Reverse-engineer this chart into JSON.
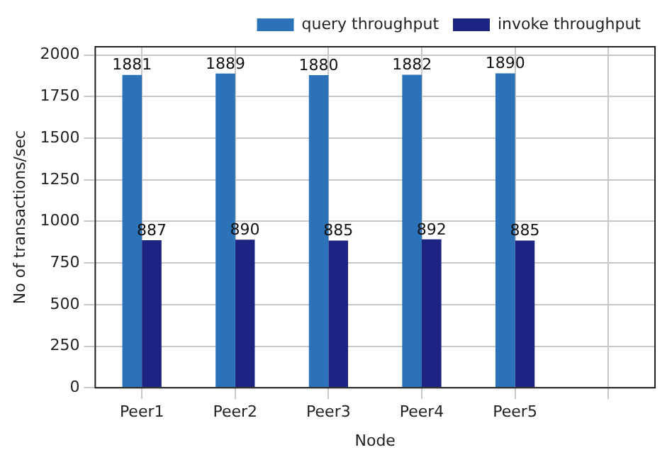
{
  "chart_data": {
    "type": "bar",
    "xlabel": "Node",
    "ylabel": "No of transactions/sec",
    "categories": [
      "Peer1",
      "Peer2",
      "Peer3",
      "Peer4",
      "Peer5",
      null
    ],
    "series": [
      {
        "name": "query throughput",
        "color": "#2c72b8",
        "values": [
          1881,
          1889,
          1880,
          1882,
          1890,
          null
        ]
      },
      {
        "name": "invoke throughput",
        "color": "#1d2380",
        "values": [
          887,
          890,
          885,
          892,
          885,
          null
        ]
      }
    ],
    "ylim": [
      0,
      2050
    ],
    "yticks": [
      0,
      250,
      500,
      750,
      1000,
      1250,
      1500,
      1750,
      2000
    ],
    "grid": true,
    "legend": "top right",
    "data_labels": true
  }
}
